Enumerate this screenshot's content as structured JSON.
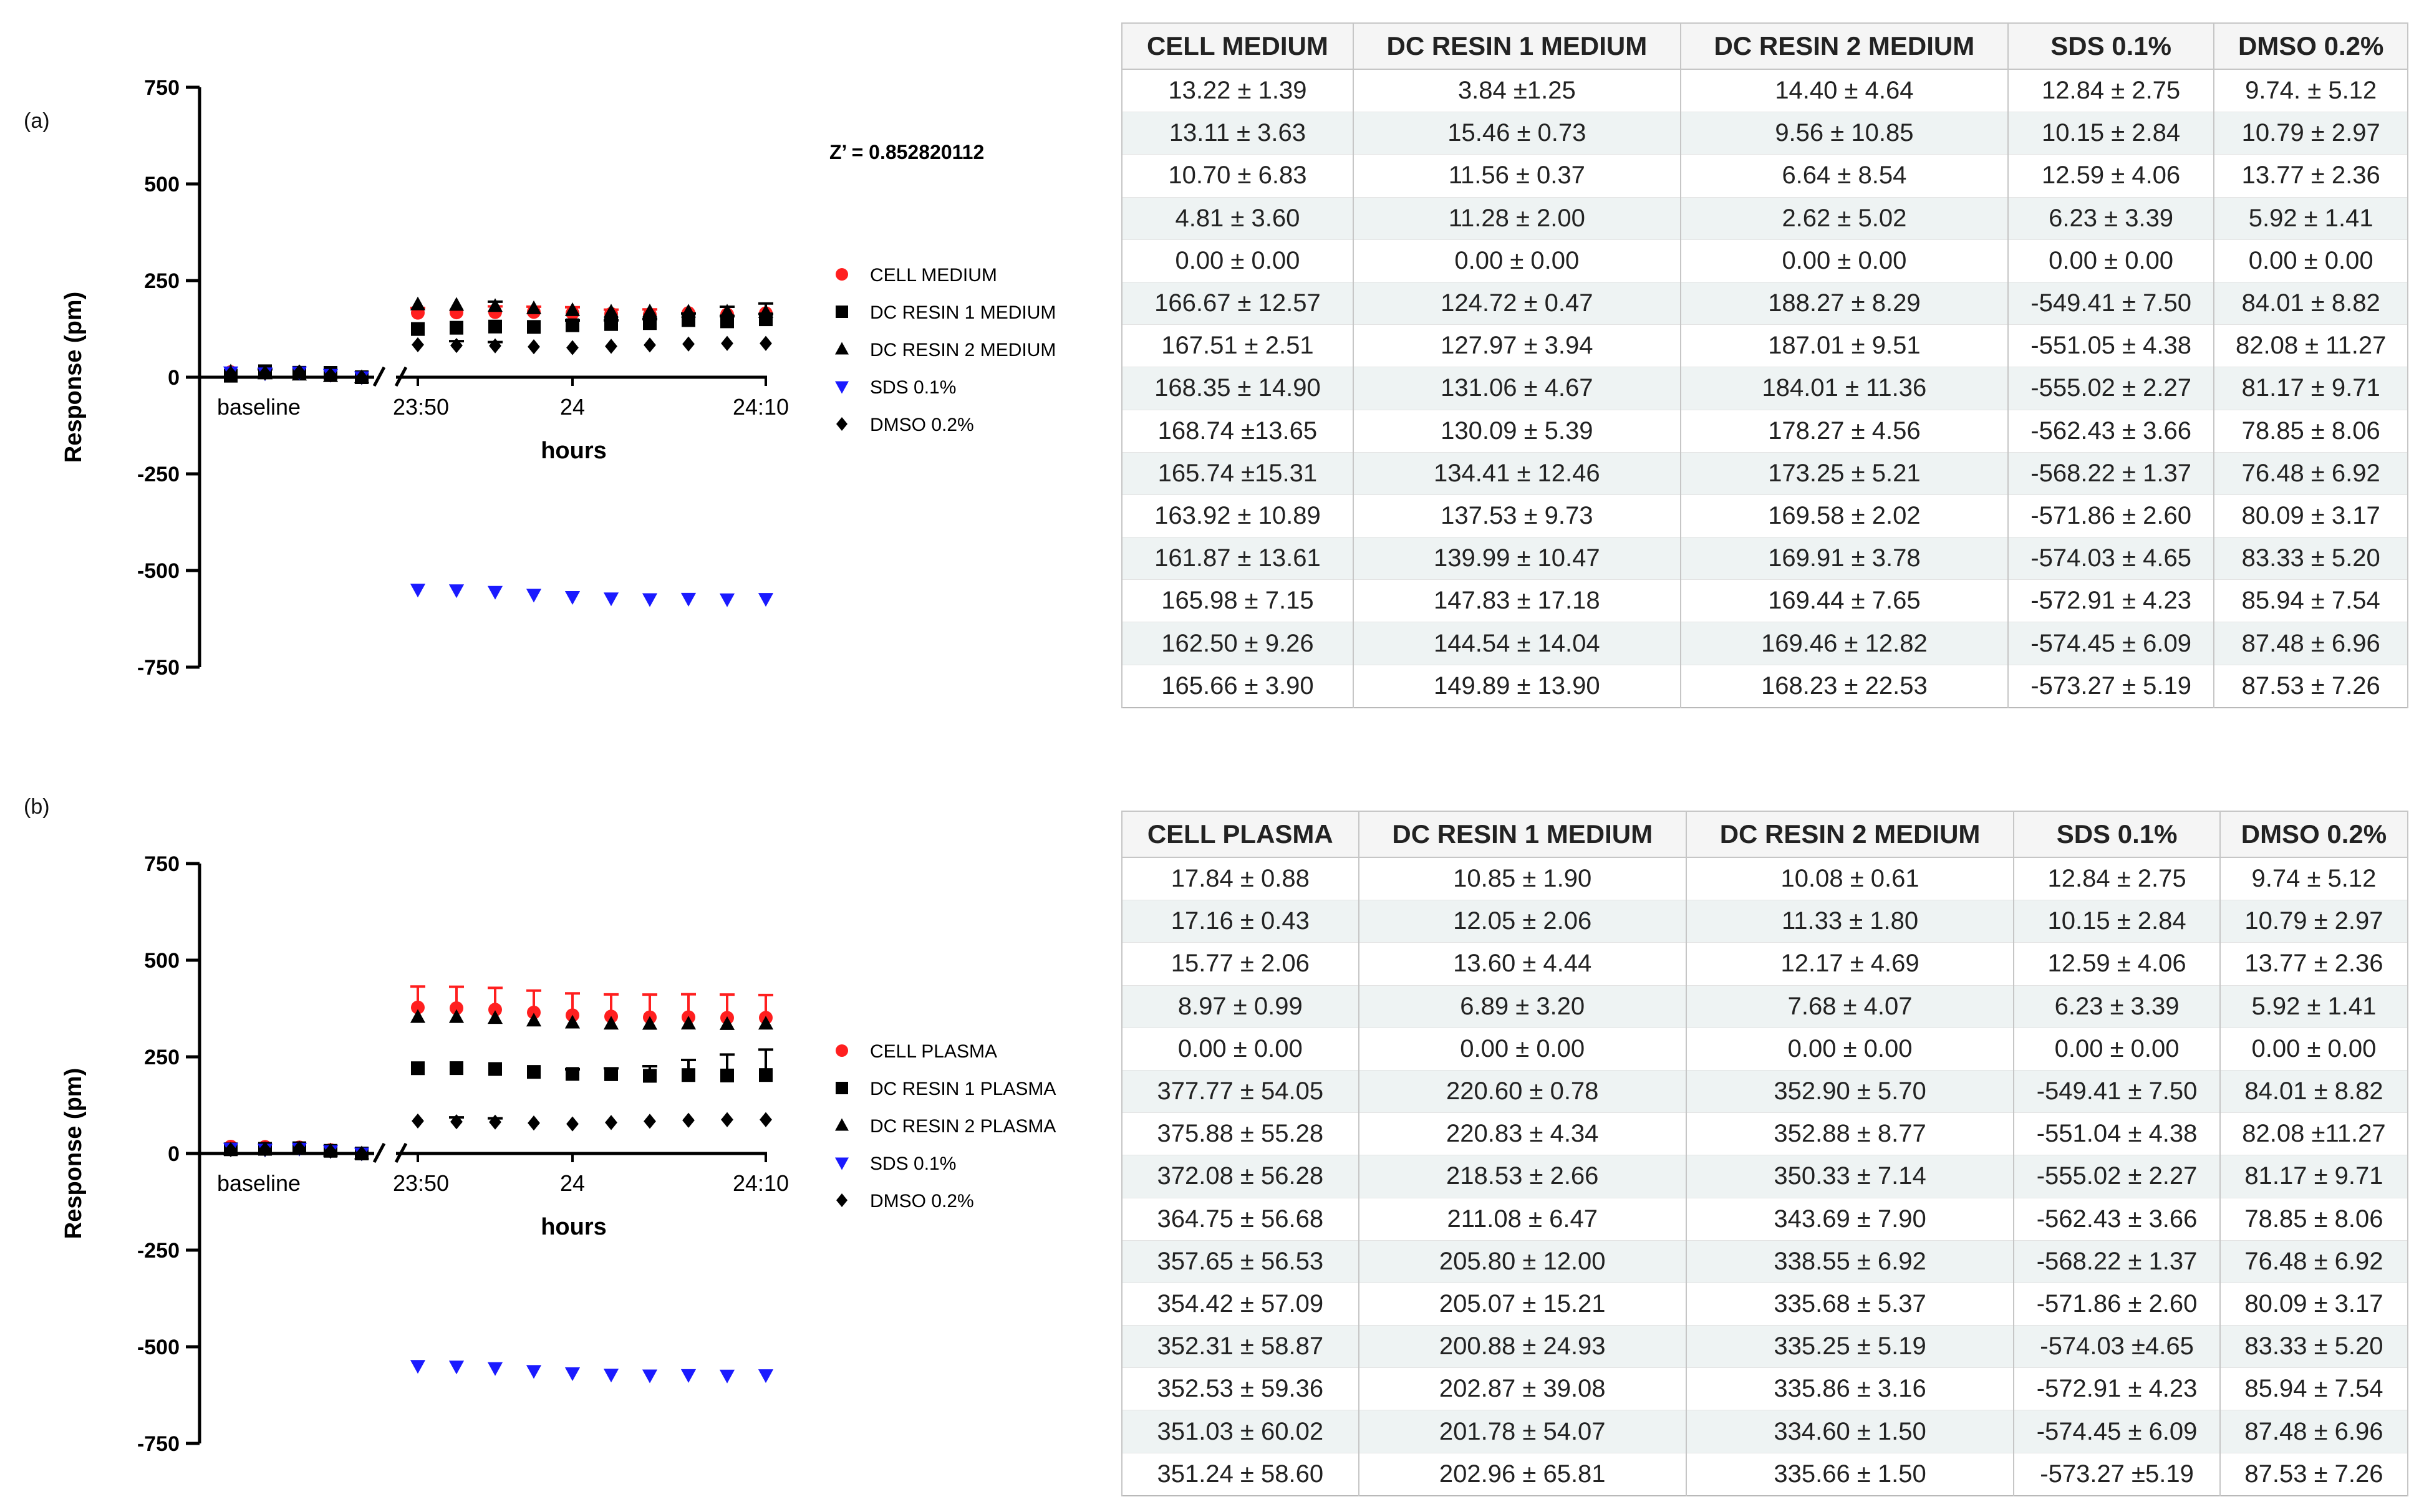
{
  "panels": [
    {
      "label": "(a)",
      "chart_data": {
        "type": "scatter",
        "title": "",
        "annotation": "Z’ = 0.852820112",
        "xlabel": "hours",
        "ylabel": "Response (pm)",
        "ylim": [
          -750,
          750
        ],
        "yticks": [
          "750",
          "500",
          "250",
          "0",
          "-250",
          "-500",
          "-750"
        ],
        "ytick_values": [
          750,
          500,
          250,
          0,
          -250,
          -500,
          -750
        ],
        "xticks": [
          "baseline",
          "23:50",
          "24",
          "24:10"
        ],
        "x_points": [
          "b1",
          "b2",
          "b3",
          "b4",
          "b5",
          "t1",
          "t2",
          "t3",
          "t4",
          "t5",
          "t6",
          "t7",
          "t8",
          "t9",
          "t10"
        ],
        "series": [
          {
            "name": "CELL MEDIUM",
            "marker": "circle",
            "color": "#ff1f1f",
            "values": [
              13.22,
              13.11,
              10.7,
              4.81,
              0.0,
              166.67,
              167.51,
              168.35,
              168.74,
              165.74,
              163.92,
              161.87,
              165.98,
              162.5,
              165.66
            ],
            "errors": [
              1.39,
              3.63,
              6.83,
              3.6,
              0.0,
              12.57,
              2.51,
              14.9,
              13.65,
              15.31,
              10.89,
              13.61,
              7.15,
              9.26,
              3.9
            ]
          },
          {
            "name": "DC RESIN 1 MEDIUM",
            "marker": "square",
            "color": "#000000",
            "values": [
              3.84,
              15.46,
              11.56,
              11.28,
              0.0,
              124.72,
              127.97,
              131.06,
              130.09,
              134.41,
              137.53,
              139.99,
              147.83,
              144.54,
              149.89
            ],
            "errors": [
              1.25,
              0.73,
              0.37,
              2.0,
              0.0,
              0.47,
              3.94,
              4.67,
              5.39,
              12.46,
              9.73,
              10.47,
              17.18,
              14.04,
              13.9
            ]
          },
          {
            "name": "DC RESIN 2 MEDIUM",
            "marker": "triangle",
            "color": "#000000",
            "values": [
              14.4,
              9.56,
              6.64,
              2.62,
              0.0,
              188.27,
              187.01,
              184.01,
              178.27,
              173.25,
              169.58,
              169.91,
              169.44,
              169.46,
              168.23
            ],
            "errors": [
              4.64,
              10.85,
              8.54,
              5.02,
              0.0,
              8.29,
              9.51,
              11.36,
              4.56,
              5.21,
              2.02,
              3.78,
              7.65,
              12.82,
              22.53
            ]
          },
          {
            "name": "SDS 0.1%",
            "marker": "triangle-down",
            "color": "#1a1aff",
            "values": [
              12.84,
              10.15,
              12.59,
              6.23,
              0.0,
              -549.41,
              -551.05,
              -555.02,
              -562.43,
              -568.22,
              -571.86,
              -574.03,
              -572.91,
              -574.45,
              -573.27
            ],
            "errors": [
              2.75,
              2.84,
              4.06,
              3.39,
              0.0,
              7.5,
              4.38,
              2.27,
              3.66,
              1.37,
              2.6,
              4.65,
              4.23,
              6.09,
              5.19
            ]
          },
          {
            "name": "DMSO 0.2%",
            "marker": "diamond",
            "color": "#000000",
            "values": [
              9.74,
              10.79,
              13.77,
              5.92,
              0.0,
              84.01,
              82.08,
              81.17,
              78.85,
              76.48,
              80.09,
              83.33,
              85.94,
              87.48,
              87.53
            ],
            "errors": [
              5.12,
              2.97,
              2.36,
              1.41,
              0.0,
              8.82,
              11.27,
              9.71,
              8.06,
              6.92,
              3.17,
              5.2,
              7.54,
              6.96,
              7.26
            ]
          }
        ]
      },
      "table": {
        "headers": [
          "CELL MEDIUM",
          "DC RESIN 1 MEDIUM",
          "DC RESIN 2 MEDIUM",
          "SDS 0.1%",
          "DMSO 0.2%"
        ],
        "rows": [
          [
            "13.22 ± 1.39",
            "3.84 ±1.25",
            "14.40 ± 4.64",
            "12.84 ± 2.75",
            "9.74. ± 5.12"
          ],
          [
            "13.11 ± 3.63",
            "15.46 ± 0.73",
            "9.56  ± 10.85",
            "10.15 ± 2.84",
            "10.79 ± 2.97"
          ],
          [
            "10.70 ± 6.83",
            "11.56 ± 0.37",
            "6.64 ± 8.54",
            "12.59 ± 4.06",
            "13.77 ± 2.36"
          ],
          [
            "4.81 ± 3.60",
            "11.28 ± 2.00",
            "2.62 ± 5.02",
            "6.23 ± 3.39",
            "5.92 ± 1.41"
          ],
          [
            "0.00 ± 0.00",
            "0.00 ± 0.00",
            "0.00 ± 0.00",
            "0.00 ± 0.00",
            "0.00 ± 0.00"
          ],
          [
            "166.67  ± 12.57",
            "124.72 ± 0.47",
            "188.27 ± 8.29",
            "-549.41 ± 7.50",
            "84.01 ± 8.82"
          ],
          [
            "167.51 ± 2.51",
            "127.97 ± 3.94",
            "187.01 ± 9.51",
            "-551.05 ± 4.38",
            "82.08 ± 11.27"
          ],
          [
            "168.35  ± 14.90",
            "131.06 ± 4.67",
            "184.01 ± 11.36",
            "-555.02 ± 2.27",
            "81.17 ± 9.71"
          ],
          [
            "168.74 ±13.65",
            "130.09 ± 5.39",
            "178.27 ± 4.56",
            "-562.43 ± 3.66",
            "78.85 ± 8.06"
          ],
          [
            "165.74 ±15.31",
            "134.41 ± 12.46",
            "173.25 ± 5.21",
            "-568.22 ± 1.37",
            "76.48 ± 6.92"
          ],
          [
            "163.92 ± 10.89",
            "137.53 ± 9.73",
            "169.58 ± 2.02",
            "-571.86 ± 2.60",
            "80.09 ± 3.17"
          ],
          [
            "161.87 ± 13.61",
            "139.99 ± 10.47",
            "169.91 ± 3.78",
            "-574.03 ± 4.65",
            "83.33 ± 5.20"
          ],
          [
            "165.98 ± 7.15",
            "147.83 ± 17.18",
            "169.44 ± 7.65",
            "-572.91 ± 4.23",
            "85.94 ± 7.54"
          ],
          [
            "162.50 ± 9.26",
            "144.54 ± 14.04",
            "169.46 ± 12.82",
            "-574.45 ± 6.09",
            "87.48 ± 6.96"
          ],
          [
            "165.66 ± 3.90",
            "149.89 ± 13.90",
            "168.23 ± 22.53",
            "-573.27 ± 5.19",
            "87.53 ± 7.26"
          ]
        ]
      }
    },
    {
      "label": "(b)",
      "chart_data": {
        "type": "scatter",
        "title": "",
        "annotation": "",
        "xlabel": "hours",
        "ylabel": "Response (pm)",
        "ylim": [
          -750,
          750
        ],
        "yticks": [
          "750",
          "500",
          "250",
          "0",
          "-250",
          "-500",
          "-750"
        ],
        "ytick_values": [
          750,
          500,
          250,
          0,
          -250,
          -500,
          -750
        ],
        "xticks": [
          "baseline",
          "23:50",
          "24",
          "24:10"
        ],
        "x_points": [
          "b1",
          "b2",
          "b3",
          "b4",
          "b5",
          "t1",
          "t2",
          "t3",
          "t4",
          "t5",
          "t6",
          "t7",
          "t8",
          "t9",
          "t10"
        ],
        "series": [
          {
            "name": "CELL PLASMA",
            "marker": "circle",
            "color": "#ff1f1f",
            "values": [
              17.84,
              17.16,
              15.77,
              8.97,
              0.0,
              377.77,
              375.88,
              372.08,
              364.75,
              357.65,
              354.42,
              352.31,
              352.53,
              351.03,
              351.24
            ],
            "errors": [
              0.88,
              0.43,
              2.06,
              0.99,
              0.0,
              54.05,
              55.28,
              56.28,
              56.68,
              56.53,
              57.09,
              58.87,
              59.36,
              60.02,
              58.6
            ]
          },
          {
            "name": "DC RESIN 1 PLASMA",
            "marker": "square",
            "color": "#000000",
            "values": [
              10.85,
              12.05,
              13.6,
              6.89,
              0.0,
              220.6,
              220.83,
              218.53,
              211.08,
              205.8,
              205.07,
              200.88,
              202.87,
              201.78,
              202.96
            ],
            "errors": [
              1.9,
              2.06,
              4.44,
              3.2,
              0.0,
              0.78,
              4.34,
              2.66,
              6.47,
              12.0,
              15.21,
              24.93,
              39.08,
              54.07,
              65.81
            ]
          },
          {
            "name": "DC RESIN 2 PLASMA",
            "marker": "triangle",
            "color": "#000000",
            "values": [
              10.08,
              11.33,
              12.17,
              7.68,
              0.0,
              352.9,
              352.88,
              350.33,
              343.69,
              338.55,
              335.68,
              335.25,
              335.86,
              334.6,
              335.66
            ],
            "errors": [
              0.61,
              1.8,
              4.69,
              4.07,
              0.0,
              5.7,
              8.77,
              7.14,
              7.9,
              6.92,
              5.37,
              5.19,
              3.16,
              1.5,
              1.5
            ]
          },
          {
            "name": "SDS 0.1%",
            "marker": "triangle-down",
            "color": "#1a1aff",
            "values": [
              12.84,
              10.15,
              12.59,
              6.23,
              0.0,
              -549.41,
              -551.04,
              -555.02,
              -562.43,
              -568.22,
              -571.86,
              -574.03,
              -572.91,
              -574.45,
              -573.27
            ],
            "errors": [
              2.75,
              2.84,
              4.06,
              3.39,
              0.0,
              7.5,
              4.38,
              2.27,
              3.66,
              1.37,
              2.6,
              4.65,
              4.23,
              6.09,
              5.19
            ]
          },
          {
            "name": "DMSO 0.2%",
            "marker": "diamond",
            "color": "#000000",
            "values": [
              9.74,
              10.79,
              13.77,
              5.92,
              0.0,
              84.01,
              82.08,
              81.17,
              78.85,
              76.48,
              80.09,
              83.33,
              85.94,
              87.48,
              87.53
            ],
            "errors": [
              5.12,
              2.97,
              2.36,
              1.41,
              0.0,
              8.82,
              11.27,
              9.71,
              8.06,
              6.92,
              3.17,
              5.2,
              7.54,
              6.96,
              7.26
            ]
          }
        ]
      },
      "table": {
        "headers": [
          "CELL PLASMA",
          "DC RESIN 1 MEDIUM",
          "DC RESIN 2 MEDIUM",
          "SDS 0.1%",
          "DMSO 0.2%"
        ],
        "rows": [
          [
            "17.84 ± 0.88",
            "10.85 ± 1.90",
            "10.08 ± 0.61",
            "12.84 ± 2.75",
            "9.74 ± 5.12"
          ],
          [
            "17.16 ± 0.43",
            "12.05 ± 2.06",
            "11.33 ± 1.80",
            "10.15 ± 2.84",
            "10.79 ± 2.97"
          ],
          [
            "15.77 ± 2.06",
            "13.60 ± 4.44",
            "12.17 ± 4.69",
            "12.59  ± 4.06",
            "13.77 ± 2.36"
          ],
          [
            "8.97 ± 0.99",
            "6.89 ± 3.20",
            "7.68 ± 4.07",
            "6.23 ± 3.39",
            "5.92 ± 1.41"
          ],
          [
            "0.00 ± 0.00",
            "0.00 ± 0.00",
            "0.00 ± 0.00",
            "0.00 ± 0.00",
            "0.00 ± 0.00"
          ],
          [
            "377.77 ± 54.05",
            "220.60 ± 0.78",
            "352.90 ± 5.70",
            "-549.41 ± 7.50",
            "84.01 ± 8.82"
          ],
          [
            "375.88 ± 55.28",
            "220.83 ± 4.34",
            "352.88 ± 8.77",
            "-551.04 ± 4.38",
            "82.08 ±11.27"
          ],
          [
            "372.08 ± 56.28",
            "218.53 ± 2.66",
            "350.33 ± 7.14",
            "-555.02 ± 2.27",
            "81.17 ± 9.71"
          ],
          [
            "364.75 ± 56.68",
            "211.08 ± 6.47",
            "343.69 ± 7.90",
            "-562.43 ± 3.66",
            "78.85 ± 8.06"
          ],
          [
            "357.65 ± 56.53",
            "205.80 ± 12.00",
            "338.55 ± 6.92",
            "-568.22 ± 1.37",
            "76.48 ± 6.92"
          ],
          [
            "354.42 ± 57.09",
            "205.07 ± 15.21",
            "335.68 ± 5.37",
            "-571.86 ± 2.60",
            "80.09 ± 3.17"
          ],
          [
            "352.31 ± 58.87",
            "200.88 ± 24.93",
            "335.25 ± 5.19",
            "-574.03 ±4.65",
            "83.33 ± 5.20"
          ],
          [
            "352.53 ± 59.36",
            "202.87 ± 39.08",
            "335.86 ± 3.16",
            "-572.91 ± 4.23",
            "85.94 ± 7.54"
          ],
          [
            "351.03 ± 60.02",
            "201.78 ± 54.07",
            "334.60 ± 1.50",
            "-574.45 ± 6.09",
            "87.48 ± 6.96"
          ],
          [
            "351.24 ± 58.60",
            "202.96 ± 65.81",
            "335.66 ± 1.50",
            "-573.27 ±5.19",
            "87.53 ± 7.26"
          ]
        ]
      }
    }
  ]
}
